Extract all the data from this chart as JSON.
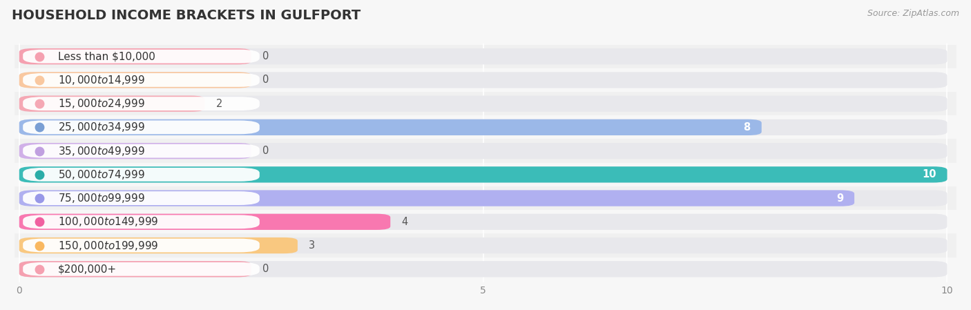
{
  "title": "HOUSEHOLD INCOME BRACKETS IN GULFPORT",
  "source": "Source: ZipAtlas.com",
  "categories": [
    "Less than $10,000",
    "$10,000 to $14,999",
    "$15,000 to $24,999",
    "$25,000 to $34,999",
    "$35,000 to $49,999",
    "$50,000 to $74,999",
    "$75,000 to $99,999",
    "$100,000 to $149,999",
    "$150,000 to $199,999",
    "$200,000+"
  ],
  "values": [
    0,
    0,
    2,
    8,
    0,
    10,
    9,
    4,
    3,
    0
  ],
  "bar_colors": [
    "#f5a0b0",
    "#f9c8a0",
    "#f5a8b4",
    "#9bb8e8",
    "#d0b0e8",
    "#3bbcb8",
    "#b0b0f0",
    "#f878b0",
    "#f9c880",
    "#f5a0b0"
  ],
  "label_dot_colors": [
    "#f5a0b0",
    "#f9c8a0",
    "#f5a8b4",
    "#7a9fd4",
    "#c0a0e0",
    "#2aada8",
    "#9898e8",
    "#f060a0",
    "#f9b860",
    "#f5a0b0"
  ],
  "zero_bar_width": 2.5,
  "xlim": [
    0,
    10
  ],
  "xticks": [
    0,
    5,
    10
  ],
  "background_color": "#f7f7f7",
  "bar_background_color": "#e8e8ec",
  "row_bg_colors": [
    "#f0f0f0",
    "#f7f7f7"
  ],
  "title_fontsize": 14,
  "label_fontsize": 11,
  "value_fontsize": 10.5
}
